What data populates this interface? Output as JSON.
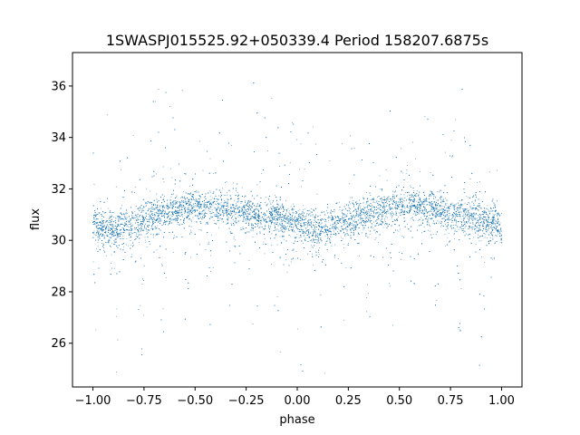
{
  "chart_data": {
    "type": "scatter",
    "title": "1SWASPJ015525.92+050339.4 Period 158207.6875s",
    "xlabel": "phase",
    "ylabel": "flux",
    "xlim": [
      -1.1,
      1.1
    ],
    "ylim": [
      24.3,
      37.3
    ],
    "x_ticks": [
      -1.0,
      -0.75,
      -0.5,
      -0.25,
      0.0,
      0.25,
      0.5,
      0.75,
      1.0
    ],
    "x_tick_labels": [
      "−1.00",
      "−0.75",
      "−0.50",
      "−0.25",
      "0.00",
      "0.25",
      "0.50",
      "0.75",
      "1.00"
    ],
    "y_ticks": [
      26,
      28,
      30,
      32,
      34,
      36
    ],
    "y_tick_labels": [
      "26",
      "28",
      "30",
      "32",
      "34",
      "36"
    ],
    "grid": false,
    "marker_color": "#1f77b4",
    "series": [
      {
        "phase_range": [
          -1.0,
          1.0
        ],
        "mean_flux_profile": [
          {
            "phase": -1.0,
            "flux": 30.6
          },
          {
            "phase": -0.9,
            "flux": 30.5
          },
          {
            "phase": -0.8,
            "flux": 30.6
          },
          {
            "phase": -0.7,
            "flux": 31.0
          },
          {
            "phase": -0.6,
            "flux": 31.2
          },
          {
            "phase": -0.5,
            "flux": 31.3
          },
          {
            "phase": -0.4,
            "flux": 31.3
          },
          {
            "phase": -0.3,
            "flux": 31.2
          },
          {
            "phase": -0.2,
            "flux": 31.0
          },
          {
            "phase": -0.1,
            "flux": 30.9
          },
          {
            "phase": 0.0,
            "flux": 30.6
          },
          {
            "phase": 0.1,
            "flux": 30.4
          },
          {
            "phase": 0.2,
            "flux": 30.6
          },
          {
            "phase": 0.3,
            "flux": 31.0
          },
          {
            "phase": 0.4,
            "flux": 31.2
          },
          {
            "phase": 0.5,
            "flux": 31.3
          },
          {
            "phase": 0.6,
            "flux": 31.3
          },
          {
            "phase": 0.7,
            "flux": 31.2
          },
          {
            "phase": 0.8,
            "flux": 31.0
          },
          {
            "phase": 0.9,
            "flux": 30.9
          },
          {
            "phase": 1.0,
            "flux": 30.6
          }
        ],
        "band_half_width": 0.6,
        "outlier_flux_range": [
          24.8,
          36.9
        ]
      }
    ]
  }
}
